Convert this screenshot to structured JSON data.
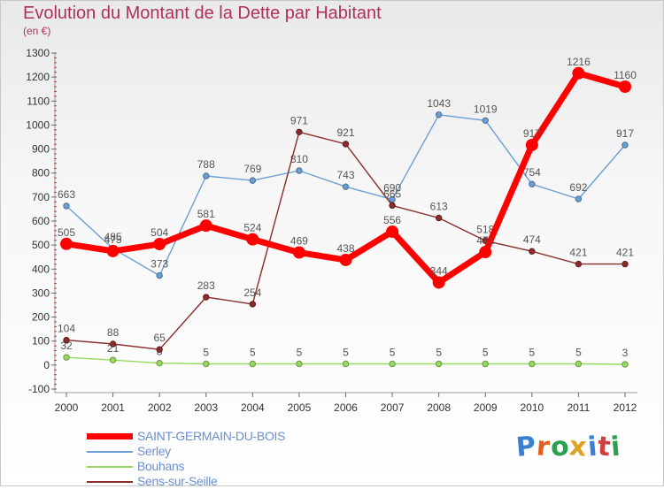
{
  "title": "Evolution du Montant de la Dette par Habitant",
  "subtitle": "(en €)",
  "logo": {
    "text": "Proxiti",
    "colors": [
      "#3a7fd0",
      "#e06020",
      "#2aa050",
      "#e0a020",
      "#3a7fd0",
      "#d04040",
      "#2aa050"
    ]
  },
  "chart_data": {
    "type": "line",
    "title": "Evolution du Montant de la Dette par Habitant",
    "subtitle": "(en €)",
    "xlabel": "",
    "ylabel": "",
    "x": [
      "2000",
      "2001",
      "2002",
      "2003",
      "2004",
      "2005",
      "2006",
      "2007",
      "2008",
      "2009",
      "2010",
      "2011",
      "2012"
    ],
    "ylim": [
      -100,
      1300
    ],
    "yticks": [
      -100,
      0,
      100,
      200,
      300,
      400,
      500,
      600,
      700,
      800,
      900,
      1000,
      1100,
      1200,
      1300
    ],
    "grid": false,
    "legend_position": "bottom-left",
    "series": [
      {
        "name": "SAINT-GERMAIN-DU-BOIS",
        "color": "#ff0000",
        "emphasis": "thick",
        "values": [
          505,
          475,
          504,
          581,
          524,
          469,
          438,
          556,
          344,
          471,
          917,
          1216,
          1160
        ],
        "labels": [
          "505",
          "475",
          "504",
          "581",
          "524",
          "469",
          "438",
          "556",
          "344",
          "471",
          "917",
          "1216",
          "1160"
        ]
      },
      {
        "name": "Serley",
        "color": "#6a9fd4",
        "values": [
          663,
          485,
          373,
          788,
          769,
          810,
          743,
          690,
          1043,
          1019,
          754,
          692,
          917
        ],
        "labels": [
          "663",
          "485",
          "373",
          "788",
          "769",
          "810",
          "743",
          "690",
          "1043",
          "1019",
          "754",
          "692",
          "917"
        ]
      },
      {
        "name": "Bouhans",
        "color": "#98d860",
        "values": [
          32,
          21,
          8,
          5,
          5,
          5,
          5,
          5,
          5,
          5,
          5,
          5,
          3
        ],
        "labels": [
          "32",
          "21",
          "8",
          "5",
          "5",
          "5",
          "5",
          "5",
          "5",
          "5",
          "5",
          "5",
          "3"
        ]
      },
      {
        "name": "Sens-sur-Seille",
        "color": "#8b2c2c",
        "values": [
          104,
          88,
          65,
          283,
          254,
          971,
          921,
          665,
          613,
          518,
          474,
          421,
          421
        ],
        "labels": [
          "104",
          "88",
          "65",
          "283",
          "254",
          "971",
          "921",
          "665",
          "613",
          "518",
          "474",
          "421",
          "421"
        ]
      }
    ]
  }
}
